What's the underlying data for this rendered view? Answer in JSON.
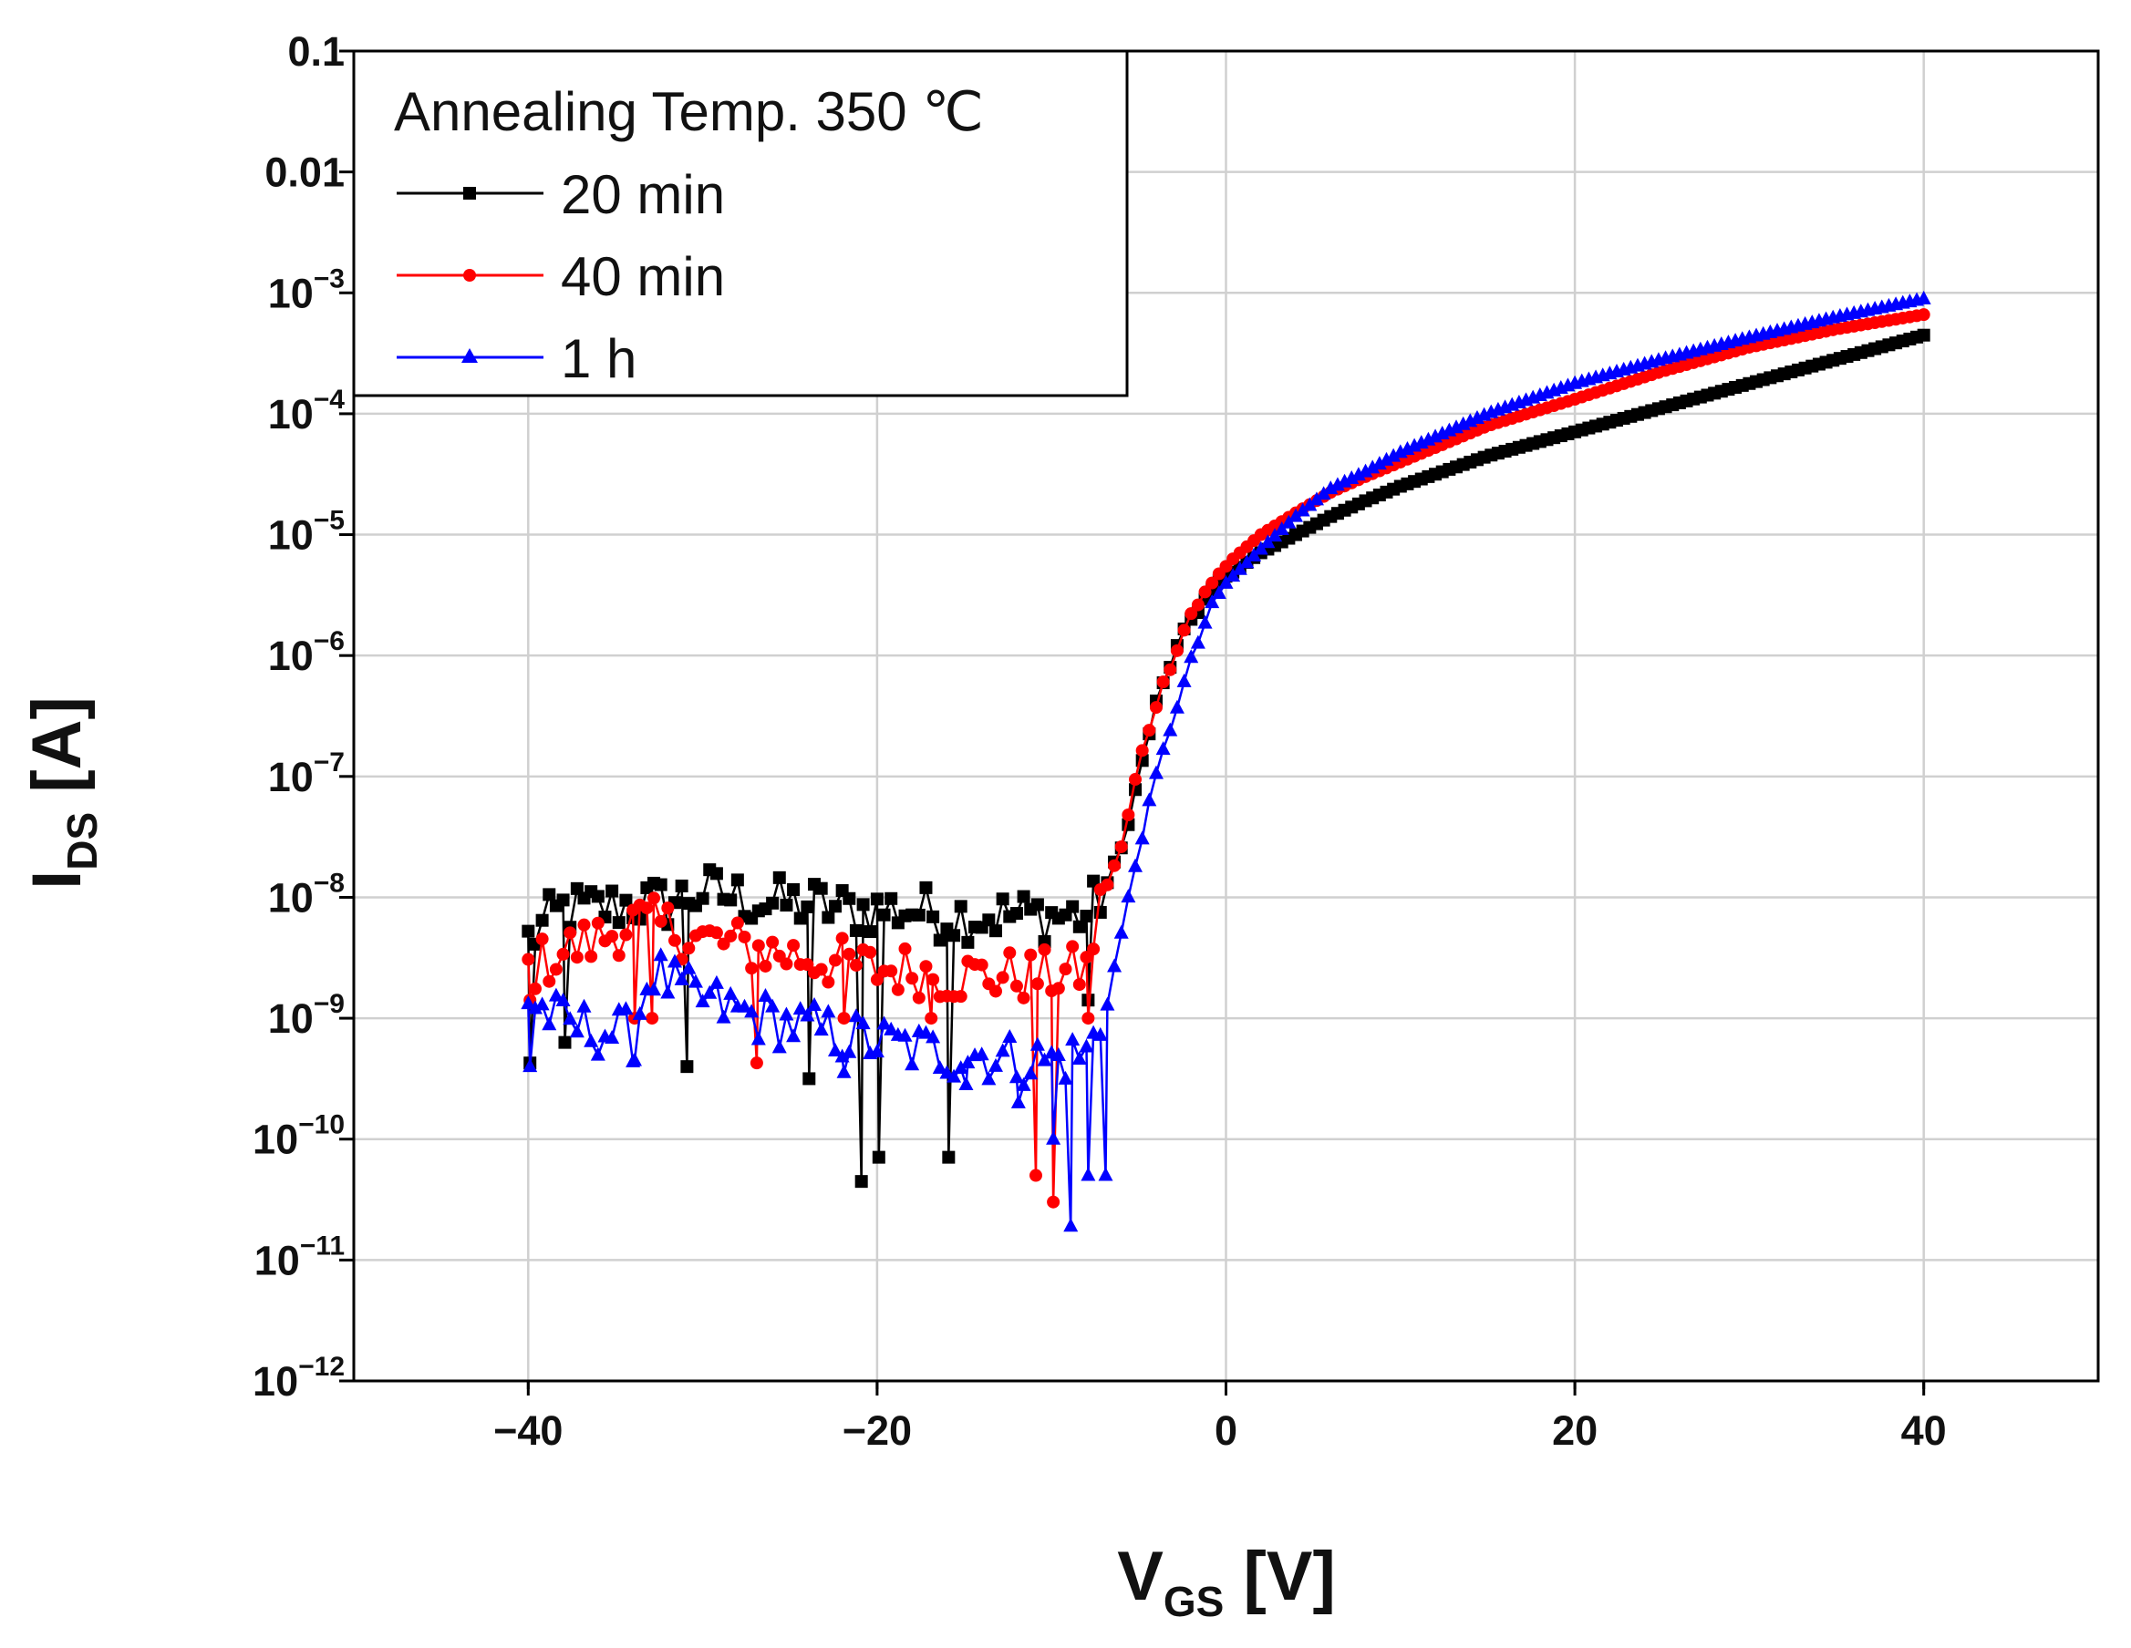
{
  "chart_data": {
    "type": "scatter",
    "title": "",
    "xlabel": {
      "main": "V",
      "sub": "GS",
      "unit": " [V]"
    },
    "ylabel": {
      "main": "I",
      "sub": "DS",
      "unit": " [A]"
    },
    "xlim": [
      -50,
      50
    ],
    "ylim_log10": [
      -12,
      -1
    ],
    "y_scale": "log",
    "grid": true,
    "x_ticks": [
      {
        "value": -40,
        "label": "−40"
      },
      {
        "value": -20,
        "label": "−20"
      },
      {
        "value": 0,
        "label": "0"
      },
      {
        "value": 20,
        "label": "20"
      },
      {
        "value": 40,
        "label": "40"
      }
    ],
    "y_ticks": [
      {
        "exp": -1,
        "label": "0.1",
        "base": "",
        "sup": ""
      },
      {
        "exp": -2,
        "label": "0.01",
        "base": "",
        "sup": ""
      },
      {
        "exp": -3,
        "label": "",
        "base": "10",
        "sup": "−3"
      },
      {
        "exp": -4,
        "label": "",
        "base": "10",
        "sup": "−4"
      },
      {
        "exp": -5,
        "label": "",
        "base": "10",
        "sup": "−5"
      },
      {
        "exp": -6,
        "label": "",
        "base": "10",
        "sup": "−6"
      },
      {
        "exp": -7,
        "label": "",
        "base": "10",
        "sup": "−7"
      },
      {
        "exp": -8,
        "label": "",
        "base": "10",
        "sup": "−8"
      },
      {
        "exp": -9,
        "label": "",
        "base": "10",
        "sup": "−9"
      },
      {
        "exp": -10,
        "label": "",
        "base": "10",
        "sup": "−10"
      },
      {
        "exp": -11,
        "label": "",
        "base": "10",
        "sup": "−11"
      },
      {
        "exp": -12,
        "label": "",
        "base": "10",
        "sup": "−12"
      }
    ],
    "legend": {
      "position": "top-left",
      "title": "Annealing Temp. 350 ℃",
      "entries": [
        "20 min",
        "40 min",
        "1 h"
      ]
    },
    "series": [
      {
        "name": "20 min",
        "color": "#000000",
        "marker": "square",
        "points": [
          [
            -40,
            -8.35
          ],
          [
            -38,
            -8.1
          ],
          [
            -36,
            -8.1
          ],
          [
            -34,
            -8.05
          ],
          [
            -32,
            -8.05
          ],
          [
            -30,
            -7.95
          ],
          [
            -28,
            -8.0
          ],
          [
            -26,
            -8.05
          ],
          [
            -24,
            -8.05
          ],
          [
            -22,
            -8.1
          ],
          [
            -20,
            -8.1
          ],
          [
            -18,
            -8.1
          ],
          [
            -16,
            -8.15
          ],
          [
            -14,
            -8.15
          ],
          [
            -12,
            -8.15
          ],
          [
            -10,
            -8.15
          ],
          [
            -8,
            -8.15
          ],
          [
            -7,
            -7.95
          ],
          [
            -6,
            -7.6
          ],
          [
            -5,
            -7.0
          ],
          [
            -4,
            -6.4
          ],
          [
            -3,
            -6.0
          ],
          [
            -2,
            -5.7
          ],
          [
            -1,
            -5.5
          ],
          [
            0,
            -5.35
          ],
          [
            2,
            -5.15
          ],
          [
            4,
            -5.0
          ],
          [
            6,
            -4.85
          ],
          [
            8,
            -4.72
          ],
          [
            10,
            -4.6
          ],
          [
            15,
            -4.35
          ],
          [
            20,
            -4.15
          ],
          [
            25,
            -3.95
          ],
          [
            30,
            -3.75
          ],
          [
            35,
            -3.55
          ],
          [
            40,
            -3.35
          ]
        ],
        "dips": [
          [
            -40,
            -9.37
          ],
          [
            -38,
            -9.2
          ],
          [
            -31,
            -9.4
          ],
          [
            -24,
            -9.5
          ],
          [
            -21,
            -10.35
          ],
          [
            -20,
            -10.15
          ],
          [
            -16,
            -10.15
          ],
          [
            -8,
            -8.85
          ]
        ]
      },
      {
        "name": "40 min",
        "color": "#ff0000",
        "marker": "circle",
        "points": [
          [
            -40,
            -8.6
          ],
          [
            -38,
            -8.45
          ],
          [
            -36,
            -8.35
          ],
          [
            -34,
            -8.2
          ],
          [
            -32,
            -8.25
          ],
          [
            -30,
            -8.35
          ],
          [
            -28,
            -8.4
          ],
          [
            -26,
            -8.45
          ],
          [
            -24,
            -8.5
          ],
          [
            -22,
            -8.55
          ],
          [
            -20,
            -8.6
          ],
          [
            -18,
            -8.6
          ],
          [
            -16,
            -8.65
          ],
          [
            -14,
            -8.65
          ],
          [
            -12,
            -8.65
          ],
          [
            -10,
            -8.65
          ],
          [
            -8,
            -8.6
          ],
          [
            -7,
            -7.95
          ],
          [
            -6,
            -7.6
          ],
          [
            -5,
            -6.9
          ],
          [
            -4,
            -6.4
          ],
          [
            -3,
            -6.0
          ],
          [
            -2,
            -5.65
          ],
          [
            -1,
            -5.45
          ],
          [
            0,
            -5.25
          ],
          [
            2,
            -5.0
          ],
          [
            4,
            -4.82
          ],
          [
            6,
            -4.65
          ],
          [
            8,
            -4.52
          ],
          [
            10,
            -4.4
          ],
          [
            15,
            -4.1
          ],
          [
            20,
            -3.88
          ],
          [
            25,
            -3.65
          ],
          [
            30,
            -3.45
          ],
          [
            35,
            -3.3
          ],
          [
            40,
            -3.18
          ]
        ],
        "dips": [
          [
            -40,
            -8.85
          ],
          [
            -34,
            -9.0
          ],
          [
            -33,
            -9.0
          ],
          [
            -27,
            -9.37
          ],
          [
            -22,
            -9.0
          ],
          [
            -17,
            -9.0
          ],
          [
            -11,
            -10.3
          ],
          [
            -10,
            -10.52
          ],
          [
            -8,
            -9.0
          ]
        ]
      },
      {
        "name": "1 h",
        "color": "#0000ff",
        "marker": "triangle",
        "points": [
          [
            -40,
            -8.85
          ],
          [
            -38,
            -9.05
          ],
          [
            -36,
            -9.1
          ],
          [
            -34,
            -9.15
          ],
          [
            -33,
            -8.6
          ],
          [
            -31,
            -8.8
          ],
          [
            -28,
            -8.95
          ],
          [
            -25,
            -9.05
          ],
          [
            -22,
            -9.15
          ],
          [
            -20,
            -9.2
          ],
          [
            -18,
            -9.25
          ],
          [
            -16,
            -9.3
          ],
          [
            -14,
            -9.3
          ],
          [
            -12,
            -9.35
          ],
          [
            -10,
            -9.35
          ],
          [
            -8,
            -9.3
          ],
          [
            -7,
            -9.0
          ],
          [
            -6,
            -8.3
          ],
          [
            -5,
            -7.6
          ],
          [
            -4,
            -7.0
          ],
          [
            -3,
            -6.5
          ],
          [
            -2,
            -6.05
          ],
          [
            -1,
            -5.65
          ],
          [
            0,
            -5.4
          ],
          [
            2,
            -5.12
          ],
          [
            4,
            -4.85
          ],
          [
            6,
            -4.62
          ],
          [
            8,
            -4.48
          ],
          [
            10,
            -4.32
          ],
          [
            15,
            -4.0
          ],
          [
            20,
            -3.75
          ],
          [
            25,
            -3.55
          ],
          [
            30,
            -3.37
          ],
          [
            35,
            -3.2
          ],
          [
            40,
            -3.05
          ]
        ],
        "dips": [
          [
            -40,
            -9.4
          ],
          [
            -34,
            -9.35
          ],
          [
            -22,
            -9.45
          ],
          [
            -15,
            -9.55
          ],
          [
            -12,
            -9.7
          ],
          [
            -10,
            -10.0
          ],
          [
            -9,
            -10.72
          ],
          [
            -8,
            -10.3
          ],
          [
            -7,
            -10.3
          ]
        ]
      }
    ]
  }
}
